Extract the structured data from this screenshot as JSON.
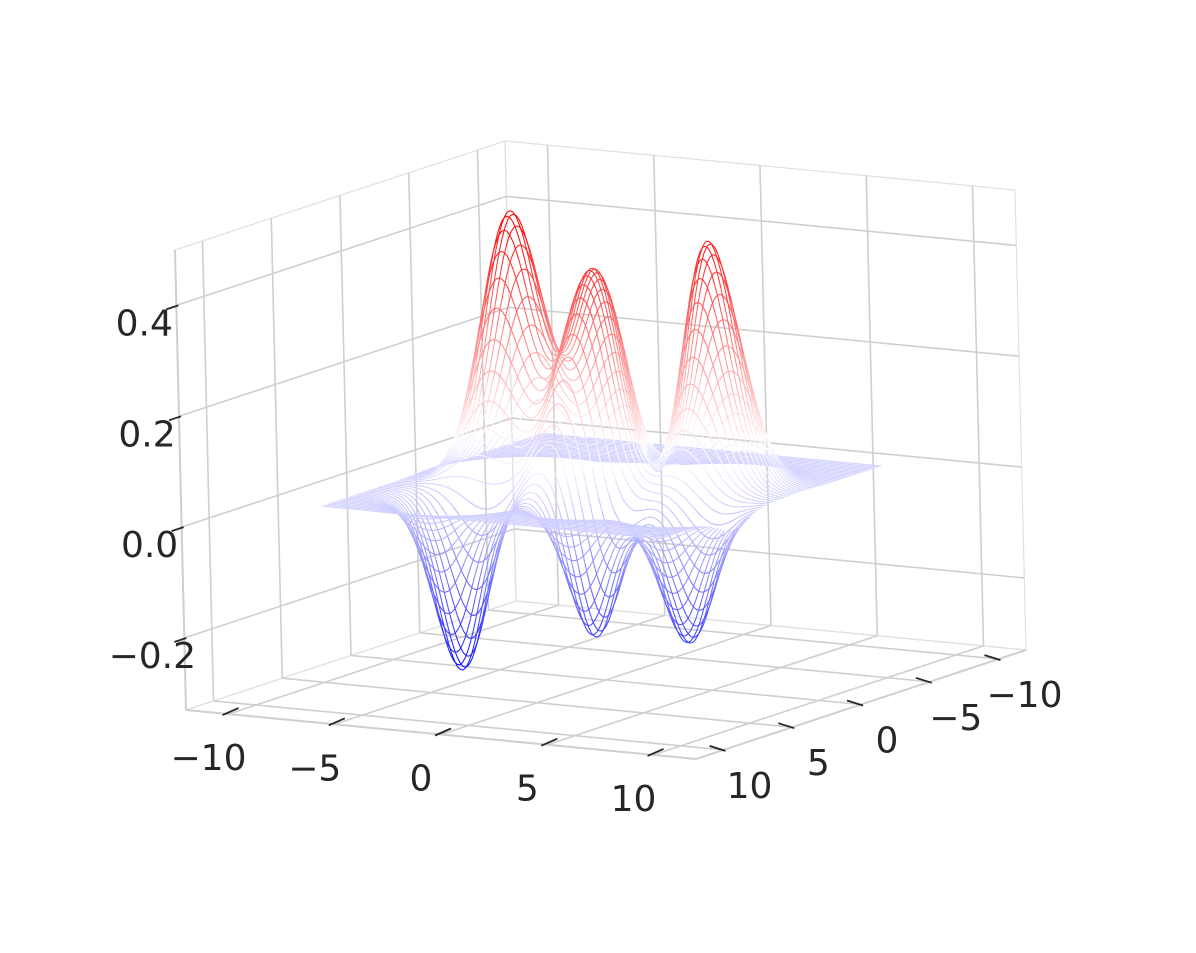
{
  "chart_data": {
    "type": "surface-3d-wireframe",
    "title": "",
    "xlabel": "",
    "ylabel": "",
    "zlabel": "",
    "colormap": "bwr",
    "colormap_colors": {
      "low": "#0000ff",
      "mid": "#ffffff",
      "high": "#ff0000"
    },
    "pane_color": "#f2f2f2",
    "grid": true,
    "view": {
      "elevation_deg": 15,
      "azimuth_deg": 20
    },
    "xlim": [
      -12,
      12
    ],
    "ylim": [
      -12,
      12
    ],
    "zlim": [
      -0.33,
      0.5
    ],
    "x_ticks": [
      -10,
      -5,
      0,
      5,
      10
    ],
    "x_tick_labels": [
      "−10",
      "−5",
      "0",
      "5",
      "10"
    ],
    "y_ticks": [
      -10,
      -5,
      0,
      5,
      10
    ],
    "y_tick_labels": [
      "−10",
      "−5",
      "0",
      "5",
      "10"
    ],
    "z_ticks": [
      -0.2,
      0.0,
      0.2,
      0.4
    ],
    "z_tick_labels": [
      "−0.2",
      "0.0",
      "0.2",
      "0.4"
    ],
    "surface_extent": {
      "x": [
        -8,
        8
      ],
      "y": [
        -8,
        8
      ]
    },
    "surface_features": [
      {
        "kind": "peak",
        "x": -4,
        "y": 0,
        "z": 0.48
      },
      {
        "kind": "peak",
        "x": 3.8,
        "y": -2,
        "z": 0.47
      },
      {
        "kind": "peak",
        "x": 0,
        "y": -0.7,
        "z": 0.3
      },
      {
        "kind": "peak",
        "x": 0.2,
        "y": 1.4,
        "z": 0.28
      },
      {
        "kind": "trough",
        "x": -3.8,
        "y": 4.5,
        "z": -0.31
      },
      {
        "kind": "trough",
        "x": 1.5,
        "y": 3,
        "z": -0.3
      },
      {
        "kind": "trough",
        "x": 5.8,
        "y": 2.8,
        "z": -0.24
      },
      {
        "kind": "trough",
        "x": 2,
        "y": -1.3,
        "z": -0.2
      }
    ]
  }
}
